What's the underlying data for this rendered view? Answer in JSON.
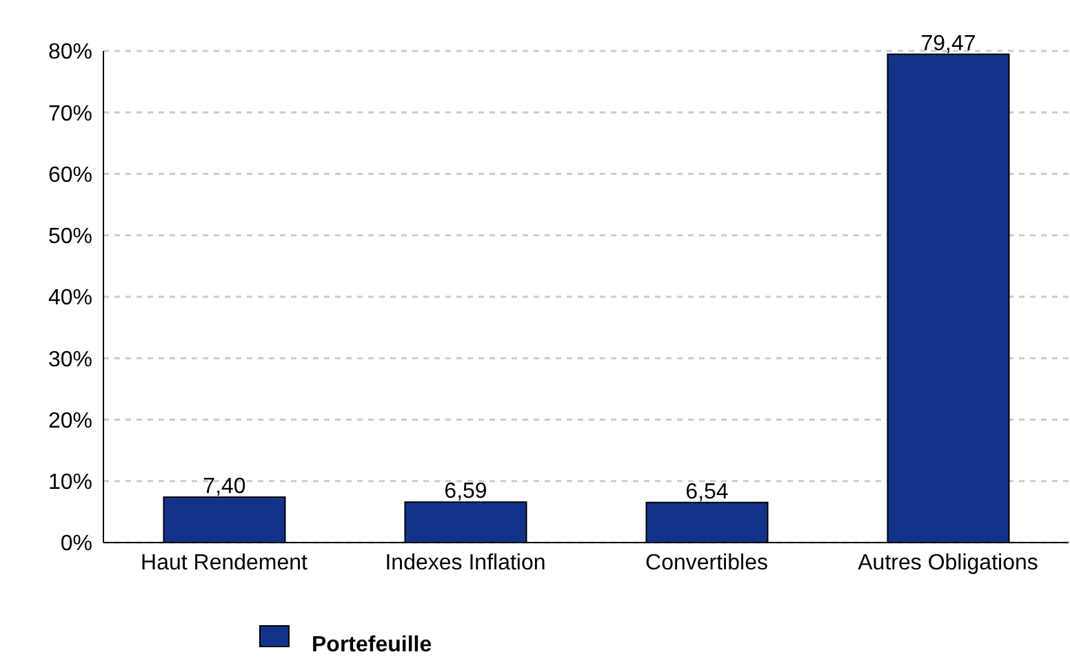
{
  "chart_data": {
    "type": "bar",
    "categories": [
      "Haut Rendement",
      "Indexes Inflation",
      "Convertibles",
      "Autres Obligations"
    ],
    "series": [
      {
        "name": "Portefeuille",
        "color": "#13338a",
        "values": [
          7.4,
          6.59,
          6.54,
          79.47
        ],
        "value_labels": [
          "7,40",
          "6,59",
          "6,54",
          "79,47"
        ]
      }
    ],
    "ylim": [
      0,
      80
    ],
    "yticks": [
      {
        "value": 0,
        "label": "0%"
      },
      {
        "value": 10,
        "label": "10%"
      },
      {
        "value": 20,
        "label": "20%"
      },
      {
        "value": 30,
        "label": "30%"
      },
      {
        "value": 40,
        "label": "40%"
      },
      {
        "value": 50,
        "label": "50%"
      },
      {
        "value": 60,
        "label": "60%"
      },
      {
        "value": 70,
        "label": "70%"
      },
      {
        "value": 80,
        "label": "80%"
      }
    ],
    "grid": "y",
    "legend": "bottom"
  }
}
